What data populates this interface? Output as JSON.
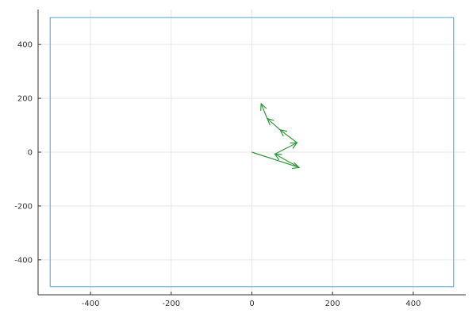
{
  "chart_data": {
    "type": "line",
    "title": "",
    "xlabel": "",
    "ylabel": "",
    "xlim": [
      -530,
      530
    ],
    "ylim": [
      -530,
      530
    ],
    "grid": true,
    "legend": "none",
    "x_ticks": [
      -400,
      -200,
      0,
      200,
      400
    ],
    "y_ticks": [
      -400,
      -200,
      0,
      200,
      400
    ],
    "x_tick_labels": [
      "-400",
      "-200",
      "0",
      "200",
      "400"
    ],
    "y_tick_labels": [
      "-400",
      "-200",
      "0",
      "200",
      "400"
    ],
    "series": [
      {
        "kind": "boundary",
        "color": "#5bb4d9",
        "x": [
          -500,
          500,
          500,
          -500,
          -500
        ],
        "y": [
          -500,
          -500,
          500,
          500,
          -500
        ]
      },
      {
        "kind": "path-with-arrowheads",
        "color": "#2e9a3a",
        "x": [
          0,
          117,
          57,
          112,
          70,
          38,
          23
        ],
        "y": [
          0,
          -57,
          -7,
          35,
          83,
          125,
          180
        ]
      }
    ]
  }
}
